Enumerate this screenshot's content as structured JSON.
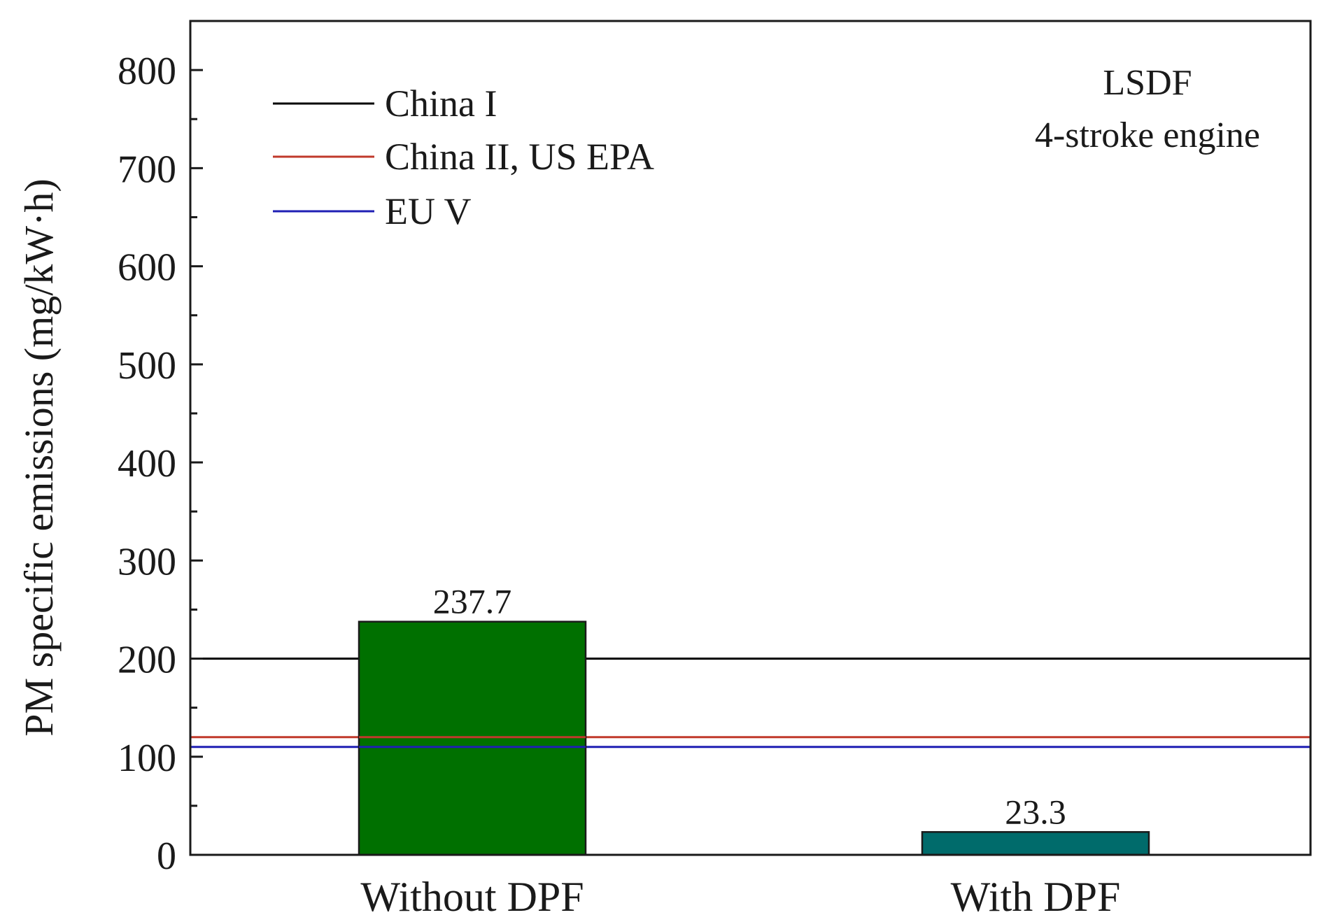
{
  "chart_data": {
    "type": "bar",
    "title": "",
    "xlabel": "",
    "ylabel": "PM specific emissions (mg/kW·h)",
    "ylim": [
      0,
      850
    ],
    "yticks": [
      0,
      100,
      200,
      300,
      400,
      500,
      600,
      700,
      800
    ],
    "grid": false,
    "categories": [
      "Without DPF",
      "With DPF"
    ],
    "values": [
      237.7,
      23.3
    ],
    "value_labels": [
      "237.7",
      "23.3"
    ],
    "bar_colors": [
      "#007000",
      "#006B6B"
    ],
    "reference_lines": [
      {
        "name": "China I",
        "value": 200,
        "color": "#000000"
      },
      {
        "name": "China II, US EPA",
        "value": 120,
        "color": "#C0392B"
      },
      {
        "name": "EU V",
        "value": 110,
        "color": "#1F1FB4"
      }
    ],
    "legend": {
      "position": "top-left",
      "entries": [
        "China I",
        "China II, US EPA",
        "EU V"
      ]
    },
    "annotation": [
      "LSDF",
      "4-stroke engine"
    ]
  }
}
